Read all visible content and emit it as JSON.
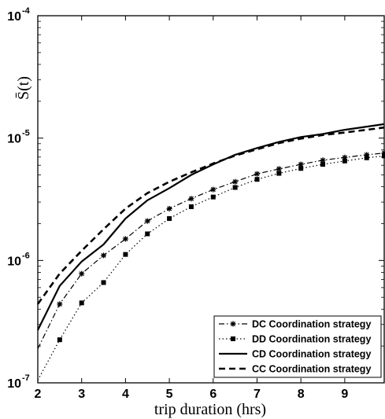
{
  "chart_data": {
    "type": "line",
    "title": "",
    "xlabel": "trip duration (hrs)",
    "ylabel": "S̄(t)",
    "xlim": [
      2,
      9.9
    ],
    "ylim": [
      1e-07,
      0.0001
    ],
    "y_scale": "log",
    "grid": false,
    "legend_position": "bottom-right",
    "x_ticks": [
      2,
      3,
      4,
      5,
      6,
      7,
      8,
      9
    ],
    "y_ticks": [
      {
        "value": 1e-07,
        "base": "10",
        "exp": "-7"
      },
      {
        "value": 1e-06,
        "base": "10",
        "exp": "-6"
      },
      {
        "value": 1e-05,
        "base": "10",
        "exp": "-5"
      },
      {
        "value": 0.0001,
        "base": "10",
        "exp": "-4"
      }
    ],
    "x": [
      2,
      2.5,
      3,
      3.5,
      4,
      4.5,
      5,
      5.5,
      6,
      6.5,
      7,
      7.5,
      8,
      8.5,
      9,
      9.5,
      9.9
    ],
    "series": [
      {
        "name": "DC Coordination strategy",
        "style": "dashdot",
        "marker": "star",
        "values": [
          1.9e-07,
          4.4e-07,
          7.8e-07,
          1.1e-06,
          1.5e-06,
          2.1e-06,
          2.65e-06,
          3.2e-06,
          3.8e-06,
          4.4e-06,
          5.1e-06,
          5.6e-06,
          6.1e-06,
          6.6e-06,
          6.95e-06,
          7.3e-06,
          7.55e-06
        ]
      },
      {
        "name": "DD Coordination strategy",
        "style": "dotted",
        "marker": "square",
        "values": [
          1.05e-07,
          2.25e-07,
          4.5e-07,
          6.6e-07,
          1.12e-06,
          1.65e-06,
          2.2e-06,
          2.75e-06,
          3.3e-06,
          3.95e-06,
          4.6e-06,
          5.15e-06,
          5.65e-06,
          6.1e-06,
          6.5e-06,
          6.9e-06,
          7.15e-06
        ]
      },
      {
        "name": "CD Coordination strategy",
        "style": "solid",
        "marker": "none",
        "values": [
          2.7e-07,
          6.2e-07,
          9.8e-07,
          1.35e-06,
          2.2e-06,
          3.1e-06,
          3.9e-06,
          5e-06,
          6.1e-06,
          7.3e-06,
          8.3e-06,
          9.3e-06,
          1.02e-05,
          1.08e-05,
          1.17e-05,
          1.24e-05,
          1.3e-05
        ]
      },
      {
        "name": "CC Coordination strategy",
        "style": "dashed",
        "marker": "none",
        "values": [
          4.4e-07,
          7.8e-07,
          1.2e-06,
          1.8e-06,
          2.65e-06,
          3.55e-06,
          4.4e-06,
          5.25e-06,
          6.2e-06,
          7.2e-06,
          8.1e-06,
          9.1e-06,
          9.9e-06,
          1.06e-05,
          1.11e-05,
          1.17e-05,
          1.22e-05
        ]
      }
    ]
  }
}
